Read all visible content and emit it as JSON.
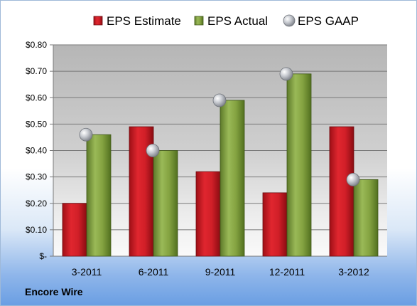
{
  "company": "Encore Wire",
  "colors": {
    "estimate": "#d11f28",
    "actual": "#84a341",
    "gaap": "#b9bcc2"
  },
  "chart_data": {
    "type": "bar",
    "categories": [
      "3-2011",
      "6-2011",
      "9-2011",
      "12-2011",
      "3-2012"
    ],
    "series": [
      {
        "name": "EPS Estimate",
        "type": "bar",
        "values": [
          0.2,
          0.49,
          0.32,
          0.24,
          0.49
        ]
      },
      {
        "name": "EPS Actual",
        "type": "bar",
        "values": [
          0.46,
          0.4,
          0.59,
          0.69,
          0.29
        ]
      },
      {
        "name": "EPS GAAP",
        "type": "scatter",
        "values": [
          0.46,
          0.4,
          0.59,
          0.69,
          0.29
        ]
      }
    ],
    "ylim": [
      0,
      0.8
    ],
    "yticks": [
      0,
      0.1,
      0.2,
      0.3,
      0.4,
      0.5,
      0.6,
      0.7,
      0.8
    ],
    "ytick_labels": [
      "$-",
      "$0.10",
      "$0.20",
      "$0.30",
      "$0.40",
      "$0.50",
      "$0.60",
      "$0.70",
      "$0.80"
    ],
    "grid": true,
    "legend_position": "top"
  }
}
